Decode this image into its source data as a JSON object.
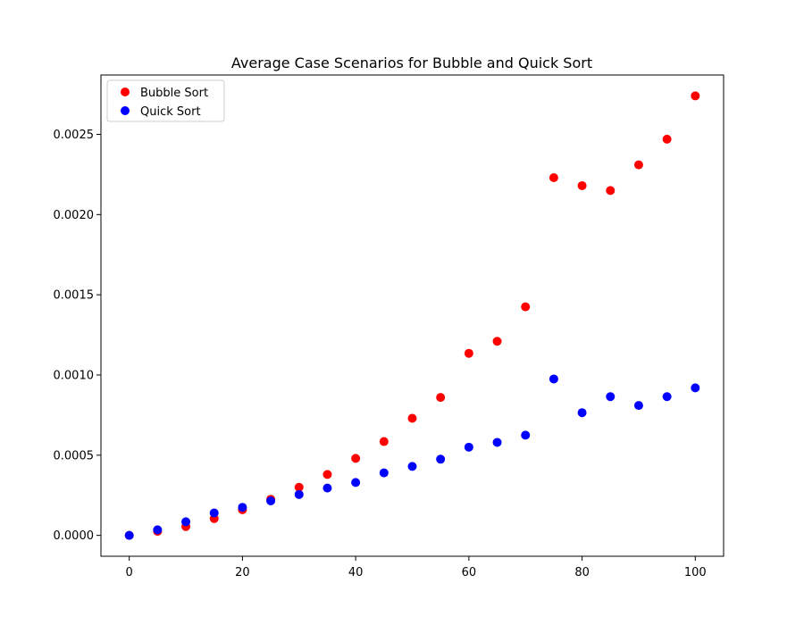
{
  "chart_data": {
    "type": "scatter",
    "title": "Average Case Scenarios for Bubble and Quick Sort",
    "xlabel": "",
    "ylabel": "",
    "xlim": [
      -5,
      105
    ],
    "ylim": [
      -0.00013,
      0.00287
    ],
    "grid": false,
    "legend_position": "top-left",
    "x_ticks": [
      0,
      20,
      40,
      60,
      80,
      100
    ],
    "x_tick_labels": [
      "0",
      "20",
      "40",
      "60",
      "80",
      "100"
    ],
    "y_ticks": [
      0,
      0.0005,
      0.001,
      0.0015,
      0.002,
      0.0025
    ],
    "y_tick_labels": [
      "0.0000",
      "0.0005",
      "0.0010",
      "0.0015",
      "0.0020",
      "0.0025"
    ],
    "x": [
      0,
      5,
      10,
      15,
      20,
      25,
      30,
      35,
      40,
      45,
      50,
      55,
      60,
      65,
      70,
      75,
      80,
      85,
      90,
      95,
      100
    ],
    "series": [
      {
        "name": "Bubble Sort",
        "color": "#ff0000",
        "values": [
          0.0,
          2.5e-05,
          5.5e-05,
          0.000105,
          0.00016,
          0.000225,
          0.0003,
          0.00038,
          0.00048,
          0.000585,
          0.00073,
          0.00086,
          0.001135,
          0.00121,
          0.001425,
          0.00223,
          0.00218,
          0.00215,
          0.00231,
          0.00247,
          0.00274
        ]
      },
      {
        "name": "Quick Sort",
        "color": "#0000ff",
        "values": [
          0.0,
          3.5e-05,
          8.5e-05,
          0.00014,
          0.000175,
          0.000215,
          0.000255,
          0.000295,
          0.00033,
          0.00039,
          0.00043,
          0.000475,
          0.00055,
          0.00058,
          0.000625,
          0.000975,
          0.000765,
          0.000865,
          0.00081,
          0.000865,
          0.00092
        ]
      }
    ]
  }
}
